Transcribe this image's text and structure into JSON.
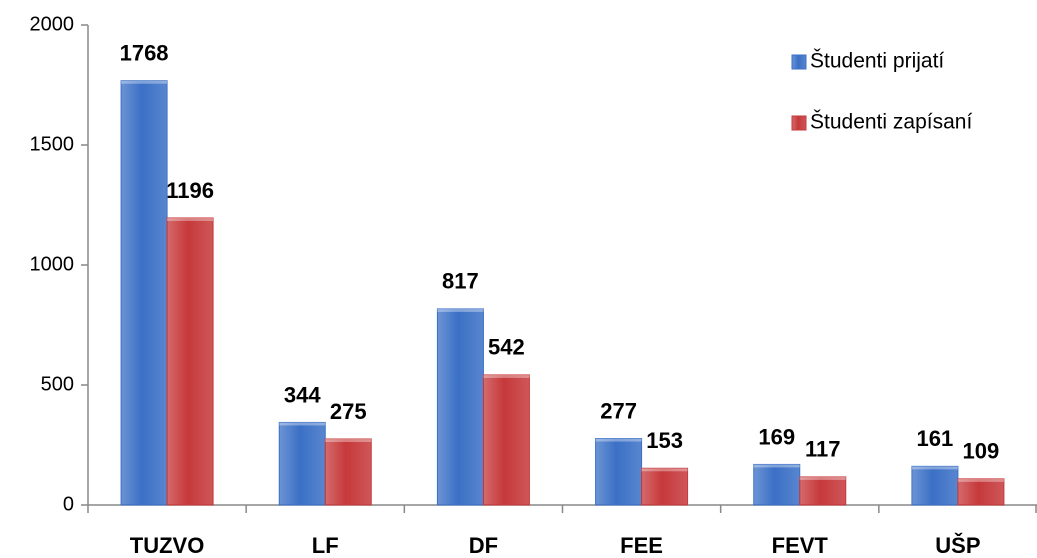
{
  "chart_data": {
    "type": "bar",
    "categories": [
      "TUZVO",
      "LF",
      "DF",
      "FEE",
      "FEVT",
      "UŠP"
    ],
    "series": [
      {
        "name": "Študenti prijatí",
        "color": "#3b70c6",
        "values": [
          1768,
          344,
          817,
          277,
          169,
          161
        ]
      },
      {
        "name": "Študenti zapísaní",
        "color": "#c6393b",
        "values": [
          1196,
          275,
          542,
          153,
          117,
          109
        ]
      }
    ],
    "ylim": [
      0,
      2000
    ],
    "yticks": [
      0,
      500,
      1000,
      1500,
      2000
    ],
    "grid": false,
    "legend": "top-right"
  }
}
